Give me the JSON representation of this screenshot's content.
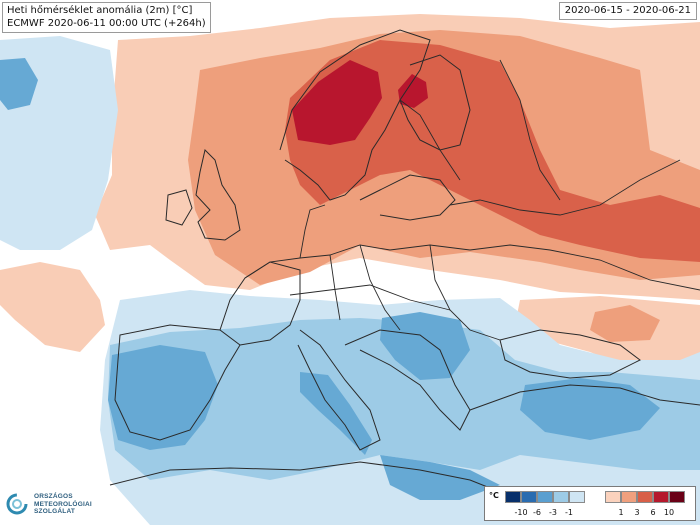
{
  "title": {
    "line1": "Heti hőmérséklet anomália (2m) [°C]",
    "line2": "ECMWF 2020-06-11 00:00 UTC (+264h)"
  },
  "date_range": "2020-06-15 - 2020-06-21",
  "logo": {
    "line1": "ORSZÁGOS",
    "line2": "METEOROLÓGIAI",
    "line3": "SZOLGÁLAT"
  },
  "legend": {
    "unit": "°C",
    "negative_ticks": [
      "-10",
      "-6",
      "-3",
      "-1"
    ],
    "positive_ticks": [
      "1",
      "3",
      "6",
      "10"
    ],
    "negative_colors": [
      "#08306b",
      "#2a6cb0",
      "#5a9fd0",
      "#9dcbe6",
      "#cfe5f3"
    ],
    "positive_colors": [
      "#fbd2bd",
      "#f0a07e",
      "#d85f48",
      "#b5182c",
      "#6a0016"
    ]
  },
  "colors": {
    "warm1": "#f9cdb6",
    "warm2": "#ee9f7c",
    "warm3": "#d9614a",
    "warm4": "#b8162e",
    "cold1": "#cfe5f3",
    "cold2": "#9dcbe6",
    "cold3": "#66a9d4"
  }
}
